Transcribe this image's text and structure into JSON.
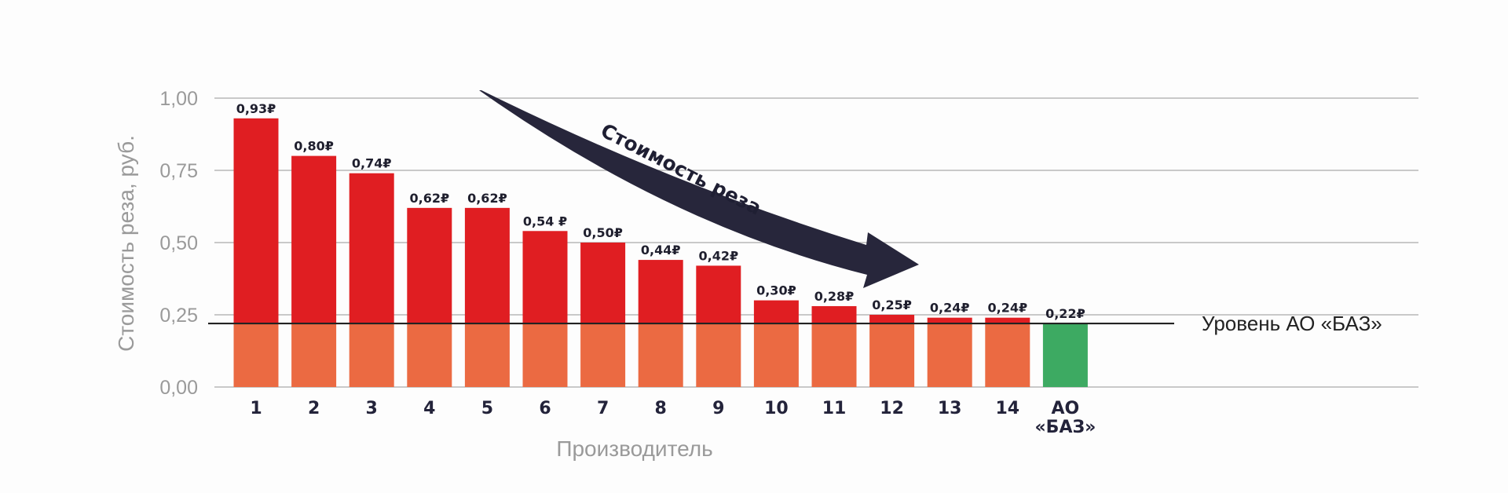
{
  "chart_data": {
    "type": "bar",
    "categories": [
      "1",
      "2",
      "3",
      "4",
      "5",
      "6",
      "7",
      "8",
      "9",
      "10",
      "11",
      "12",
      "13",
      "14",
      "АО «БАЗ»"
    ],
    "category_lines": [
      [
        "1"
      ],
      [
        "2"
      ],
      [
        "3"
      ],
      [
        "4"
      ],
      [
        "5"
      ],
      [
        "6"
      ],
      [
        "7"
      ],
      [
        "8"
      ],
      [
        "9"
      ],
      [
        "10"
      ],
      [
        "11"
      ],
      [
        "12"
      ],
      [
        "13"
      ],
      [
        "14"
      ],
      [
        "АО",
        "«БАЗ»"
      ]
    ],
    "values": [
      0.93,
      0.8,
      0.74,
      0.62,
      0.62,
      0.54,
      0.5,
      0.44,
      0.42,
      0.3,
      0.28,
      0.25,
      0.24,
      0.24,
      0.22
    ],
    "data_labels": [
      "0,93₽",
      "0,80₽",
      "0,74₽",
      "0,62₽",
      "0,62₽",
      "0,54 ₽",
      "0,50₽",
      "0,44₽",
      "0,42₽",
      "0,30₽",
      "0,28₽",
      "0,25₽",
      "0,24₽",
      "0,24₽",
      "0,22₽"
    ],
    "xlabel": "Производитель",
    "ylabel": "Стоимость реза, руб.",
    "ylim": [
      0,
      1.0
    ],
    "yticks": [
      0,
      0.25,
      0.5,
      0.75,
      1.0
    ],
    "ytick_labels": [
      "0,00",
      "0,25",
      "0,50",
      "0,75",
      "1,00"
    ],
    "grid": true,
    "reference_line": {
      "value": 0.22,
      "label": "Уровень  АО «БАЗ»"
    },
    "annotation": {
      "text": "Стоимость реза",
      "style": "arrow-down-right"
    },
    "colors": {
      "bar_top": "#e01e22",
      "bar_base": "#eb6a42",
      "highlight": "#3daa62",
      "reference": "#222222",
      "grid": "#b8b8b8",
      "arrow": "#27263b"
    }
  }
}
